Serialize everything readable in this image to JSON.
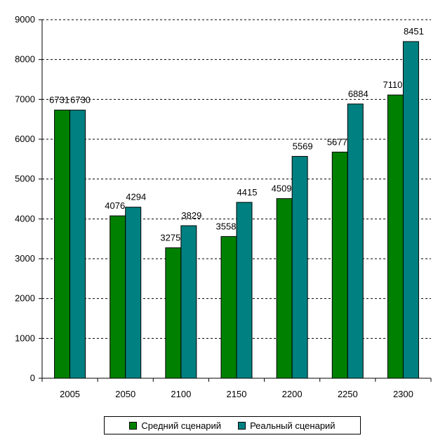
{
  "chart_data": {
    "type": "bar",
    "title": "",
    "xlabel": "",
    "ylabel": "",
    "categories": [
      "2005",
      "2050",
      "2100",
      "2150",
      "2200",
      "2250",
      "2300"
    ],
    "ylim": [
      0,
      9000
    ],
    "yticks": [
      "0",
      "1000",
      "2000",
      "3000",
      "4000",
      "5000",
      "6000",
      "7000",
      "8000",
      "9000"
    ],
    "grid": "horizontal dashed",
    "legend_position": "bottom",
    "series": [
      {
        "name": "Средний сценарий",
        "color": "#008000",
        "values": [
          6731,
          4076,
          3275,
          3558,
          4509,
          5677,
          7110
        ]
      },
      {
        "name": "Реальный сценарий",
        "color": "#008080",
        "values": [
          6730,
          4294,
          3829,
          4415,
          5569,
          6884,
          8451
        ]
      }
    ]
  }
}
